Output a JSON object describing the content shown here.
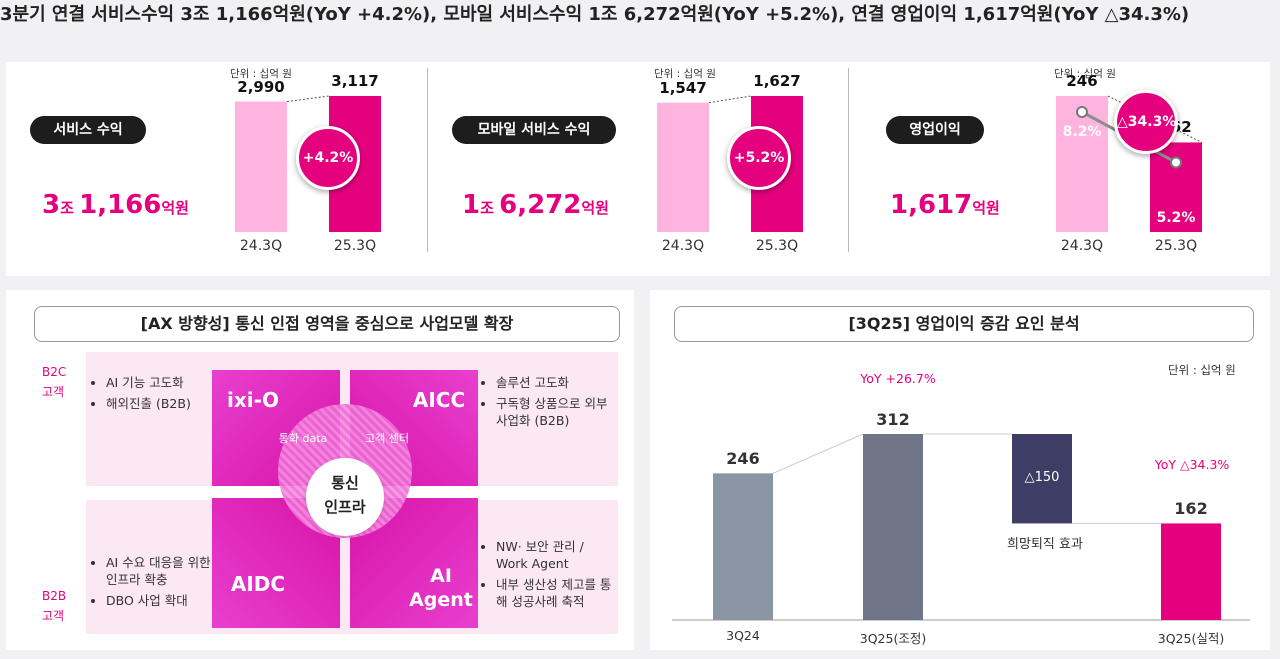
{
  "headline": "3분기 연결 서비스수익 3조 1,166억원(YoY +4.2%), 모바일 서비스수익 1조 6,272억원(YoY +5.2%), 연결 영업이익 1,617억원(YoY △34.3%)",
  "top": {
    "unit": "단위 : 십억 원",
    "metrics": [
      {
        "pill": "서비스 수익",
        "big_a": "3",
        "big_b": "조 ",
        "big_c": "1,166",
        "big_d": "억원",
        "badge": "+4.2%"
      },
      {
        "pill": "모바일 서비스 수익",
        "big_a": "1",
        "big_b": "조 ",
        "big_c": "6,272",
        "big_d": "억원",
        "badge": "+5.2%"
      },
      {
        "pill": "영업이익",
        "big_a": "",
        "big_b": "",
        "big_c": "1,617",
        "big_d": "억원",
        "badge": "△34.3%",
        "margin_prev": "8.2%",
        "margin_curr": "5.2%"
      }
    ]
  },
  "ax": {
    "title": "[AX 방향성] 통신 인접 영역을 중심으로 사업모델 확장",
    "b2c": "B2C 고객",
    "b2b": "B2B 고객",
    "tiles": {
      "tl": "ixi-O",
      "tr": "AICC",
      "bl": "AIDC",
      "br": "AI Agent"
    },
    "inner": {
      "left": "통화 data",
      "right": "고객 센터",
      "center_a": "통신",
      "center_b": "인프라"
    },
    "bullets_tl": [
      "AI 기능 고도화",
      "해외진출 (B2B)"
    ],
    "bullets_tr": [
      "솔루션 고도화",
      "구독형 상품으로 외부 사업화 (B2B)"
    ],
    "bullets_bl": [
      "AI 수요 대응을 위한 인프라 확충",
      "DBO 사업 확대"
    ],
    "bullets_br": [
      "NW· 보안 관리 / Work Agent",
      "내부 생산성 제고를 통해 성공사례 축적"
    ]
  },
  "waterfall_meta": {
    "title": "[3Q25] 영업이익 증감 요인 분석",
    "unit": "단위 : 십억 원",
    "yoy1": "YoY +26.7%",
    "yoy2": "YoY △34.3%",
    "delta_label": "△150",
    "delta_note": "희망퇴직 효과"
  },
  "colors": {
    "magenta": "#e5007e",
    "light_pink": "#ffb3df",
    "slate1": "#8a96a4",
    "slate2": "#6f7587",
    "navy": "#3d3d66"
  },
  "chart_data": [
    {
      "type": "bar",
      "categories": [
        "24.3Q",
        "25.3Q"
      ],
      "values": [
        2990,
        3117
      ],
      "value_labels": [
        "2,990",
        "3,117"
      ],
      "ylim": [
        0,
        3117
      ]
    },
    {
      "type": "bar",
      "categories": [
        "24.3Q",
        "25.3Q"
      ],
      "values": [
        1547,
        1627
      ],
      "value_labels": [
        "1,547",
        "1,627"
      ],
      "ylim": [
        0,
        1627
      ]
    },
    {
      "type": "bar",
      "categories": [
        "24.3Q",
        "25.3Q"
      ],
      "values": [
        246,
        162
      ],
      "value_labels": [
        "246",
        "162"
      ],
      "ylim": [
        0,
        246
      ]
    },
    {
      "type": "bar",
      "categories": [
        "3Q24",
        "3Q25(조정)",
        "",
        "3Q25(실적)"
      ],
      "values": [
        246,
        312,
        -150,
        162
      ],
      "value_labels": [
        "246",
        "312",
        "△150",
        "162"
      ],
      "ylim": [
        0,
        312
      ]
    }
  ]
}
